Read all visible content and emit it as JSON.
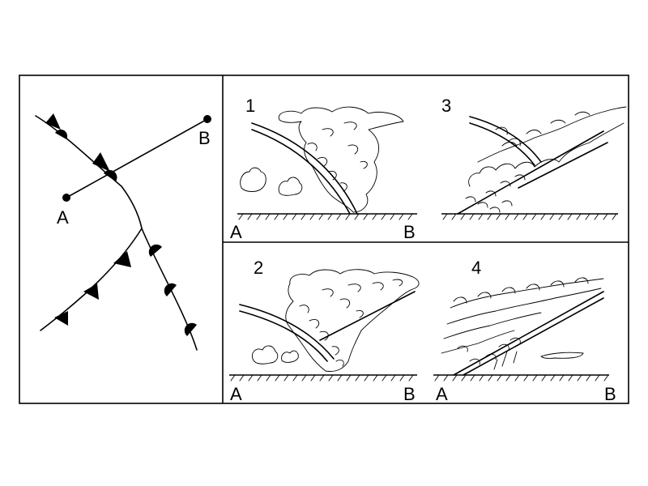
{
  "map": {
    "point_a": "A",
    "point_b": "B"
  },
  "panels": [
    {
      "number": "1",
      "left_label": "A",
      "right_label": "B"
    },
    {
      "number": "3",
      "left_label": "",
      "right_label": ""
    },
    {
      "number": "2",
      "left_label": "A",
      "right_label": "B"
    },
    {
      "number": "4",
      "left_label": "A",
      "right_label": "B"
    }
  ],
  "colors": {
    "ink": "#000000",
    "background": "#ffffff"
  }
}
